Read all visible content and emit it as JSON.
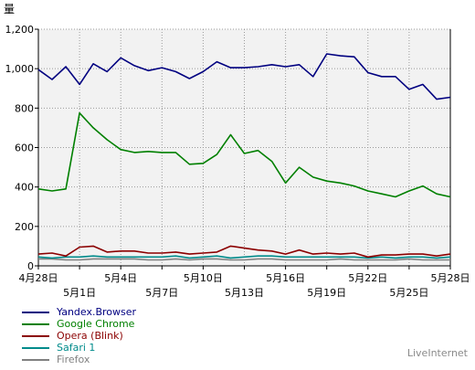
{
  "chart_data": {
    "type": "line",
    "ylabel": "量",
    "ylim": [
      0,
      1200
    ],
    "yticks": [
      0,
      200,
      400,
      600,
      800,
      1000,
      1200
    ],
    "ytick_labels": [
      "0",
      "200",
      "400",
      "600",
      "800",
      "1,000",
      "1,200"
    ],
    "grid": true,
    "x": [
      "4月28日",
      "4月29日",
      "4月30日",
      "5月1日",
      "5月2日",
      "5月3日",
      "5月4日",
      "5月5日",
      "5月6日",
      "5月7日",
      "5月8日",
      "5月9日",
      "5月10日",
      "5月11日",
      "5月12日",
      "5月13日",
      "5月14日",
      "5月15日",
      "5月16日",
      "5月17日",
      "5月18日",
      "5月19日",
      "5月20日",
      "5月21日",
      "5月22日",
      "5月23日",
      "5月24日",
      "5月25日",
      "5月26日",
      "5月27日",
      "5月28日"
    ],
    "xtick_labels": [
      {
        "label": "4月28日",
        "index": 0,
        "row": 1
      },
      {
        "label": "5月1日",
        "index": 3,
        "row": 2
      },
      {
        "label": "5月4日",
        "index": 6,
        "row": 1
      },
      {
        "label": "5月7日",
        "index": 9,
        "row": 2
      },
      {
        "label": "5月10日",
        "index": 12,
        "row": 1
      },
      {
        "label": "5月13日",
        "index": 15,
        "row": 2
      },
      {
        "label": "5月16日",
        "index": 18,
        "row": 1
      },
      {
        "label": "5月19日",
        "index": 21,
        "row": 2
      },
      {
        "label": "5月22日",
        "index": 24,
        "row": 1
      },
      {
        "label": "5月25日",
        "index": 27,
        "row": 2
      },
      {
        "label": "5月28日",
        "index": 30,
        "row": 1
      }
    ],
    "series": [
      {
        "name": "Yandex.Browser",
        "color": "#000080",
        "values": [
          995,
          945,
          1010,
          920,
          1025,
          985,
          1055,
          1015,
          990,
          1005,
          985,
          950,
          985,
          1035,
          1005,
          1005,
          1010,
          1020,
          1010,
          1020,
          960,
          1075,
          1065,
          1060,
          980,
          960,
          960,
          895,
          920,
          845,
          855
        ]
      },
      {
        "name": "Google Chrome",
        "color": "#008000",
        "values": [
          390,
          380,
          390,
          775,
          700,
          640,
          590,
          575,
          580,
          575,
          575,
          515,
          520,
          565,
          665,
          570,
          585,
          530,
          420,
          500,
          450,
          430,
          420,
          405,
          380,
          365,
          350,
          380,
          405,
          365,
          350
        ]
      },
      {
        "name": "Opera (Blink)",
        "color": "#8b0000",
        "values": [
          60,
          65,
          50,
          95,
          100,
          70,
          75,
          75,
          65,
          65,
          70,
          60,
          65,
          70,
          100,
          90,
          80,
          75,
          60,
          80,
          60,
          65,
          60,
          65,
          45,
          55,
          55,
          60,
          60,
          50,
          60
        ]
      },
      {
        "name": "Safari 1",
        "color": "#008b8b",
        "values": [
          45,
          40,
          45,
          45,
          50,
          45,
          45,
          45,
          45,
          45,
          50,
          40,
          45,
          50,
          40,
          45,
          50,
          50,
          45,
          45,
          45,
          45,
          45,
          45,
          40,
          45,
          40,
          45,
          45,
          40,
          45
        ]
      },
      {
        "name": "Firefox",
        "color": "#808080",
        "values": [
          35,
          35,
          30,
          30,
          35,
          35,
          35,
          35,
          30,
          30,
          35,
          30,
          35,
          35,
          30,
          30,
          35,
          35,
          30,
          30,
          30,
          30,
          35,
          30,
          30,
          30,
          30,
          35,
          30,
          30,
          30
        ]
      }
    ]
  },
  "watermark": "LiveInternet"
}
